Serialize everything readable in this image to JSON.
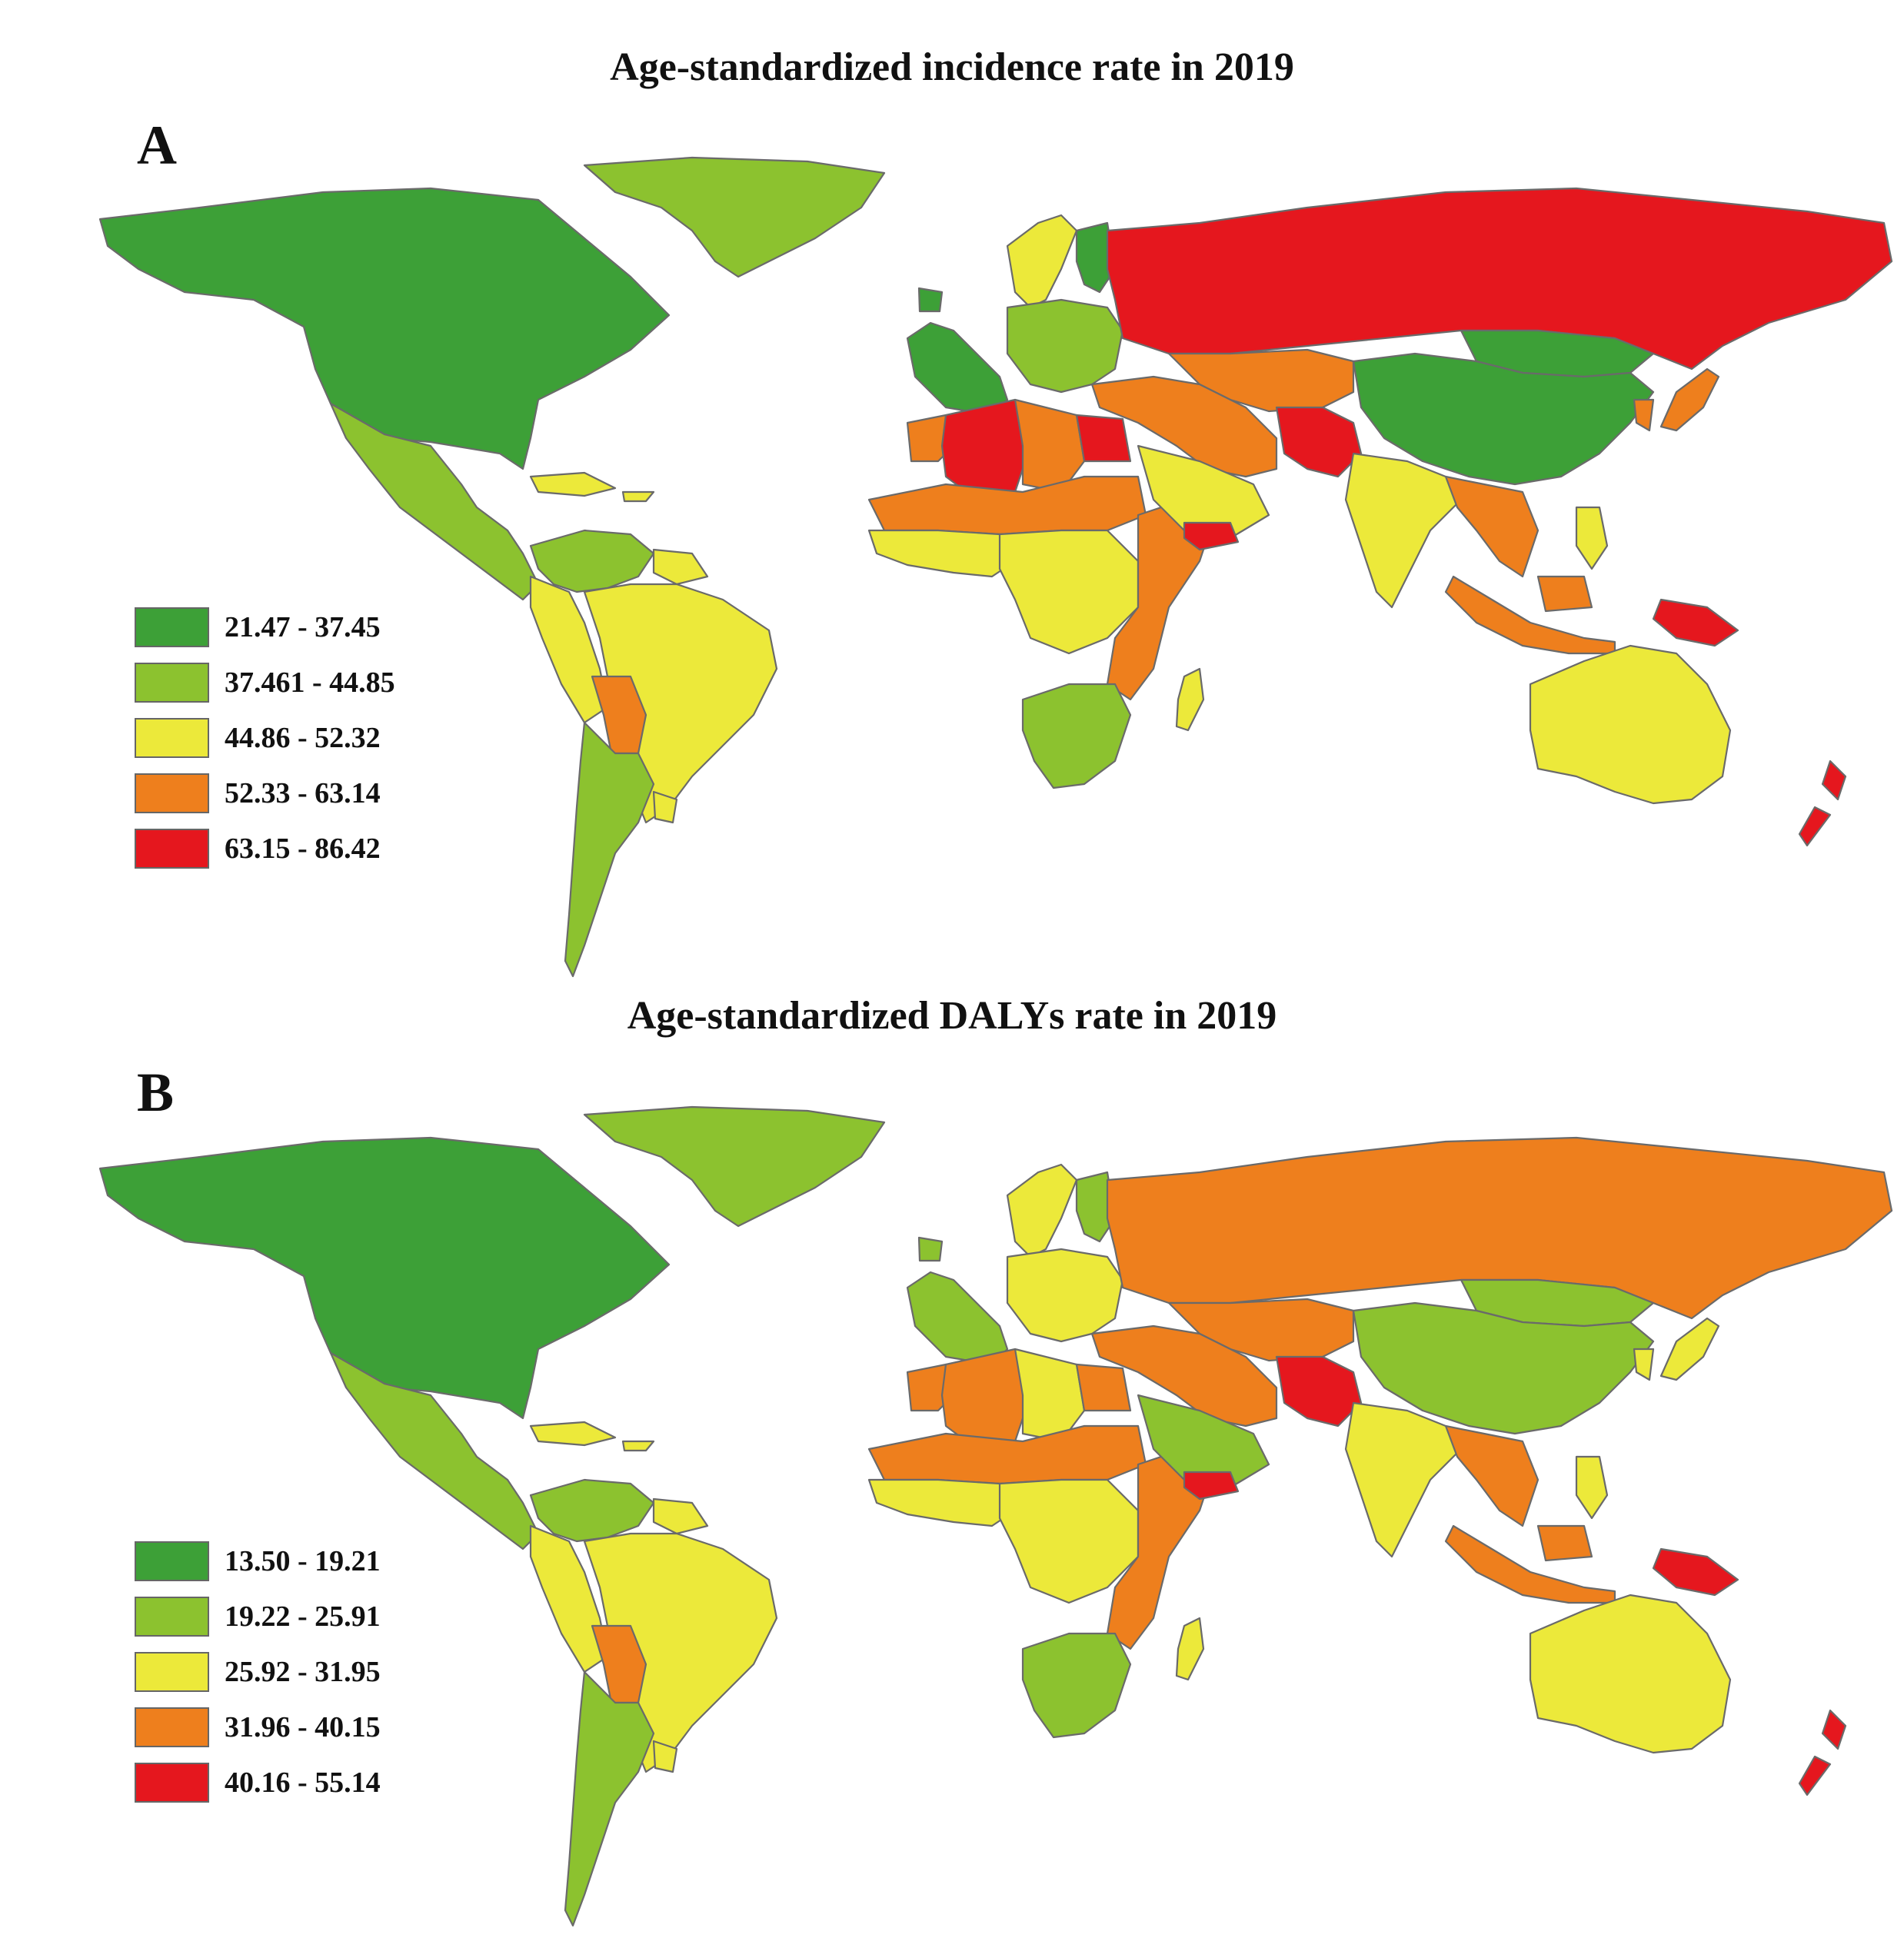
{
  "panels": [
    {
      "letter": "A",
      "title": "Age-standardized incidence rate in 2019",
      "legend": [
        {
          "label": "21.47 - 37.45",
          "color": "#3da037"
        },
        {
          "label": "37.461 - 44.85",
          "color": "#8cc22f"
        },
        {
          "label": "44.86 - 52.32",
          "color": "#ece93a"
        },
        {
          "label": "52.33 - 63.14",
          "color": "#ee7f1d"
        },
        {
          "label": "63.15 - 86.42",
          "color": "#e5171e"
        }
      ],
      "regions": {
        "north_america": 0,
        "greenland": 1,
        "central_america": 1,
        "caribbean": 2,
        "venezuela_colombia": 1,
        "guianas": 2,
        "peru_ecuador": 2,
        "brazil": 2,
        "bolivia": 3,
        "southern_cone": 1,
        "uruguay": 2,
        "western_europe": 0,
        "scandinavia": 2,
        "finland": 0,
        "eastern_europe": 1,
        "russia": 4,
        "central_asia": 3,
        "turkey_iran": 3,
        "afghanistan": 4,
        "china": 0,
        "mongolia": 0,
        "japan": 3,
        "korea": 3,
        "north_africa_west": 4,
        "morocco": 3,
        "libya": 3,
        "egypt": 4,
        "sahel": 3,
        "west_africa": 2,
        "central_africa": 2,
        "east_africa": 3,
        "southern_africa": 1,
        "madagascar": 2,
        "arabia": 2,
        "yemen": 4,
        "india": 2,
        "southeast_asia": 3,
        "indonesia": 3,
        "philippines": 2,
        "papua": 4,
        "australia": 2,
        "new_zealand": 4
      }
    },
    {
      "letter": "B",
      "title": "Age-standardized DALYs rate in 2019",
      "legend": [
        {
          "label": "13.50 - 19.21",
          "color": "#3da037"
        },
        {
          "label": "19.22 - 25.91",
          "color": "#8cc22f"
        },
        {
          "label": "25.92 - 31.95",
          "color": "#ece93a"
        },
        {
          "label": "31.96 - 40.15",
          "color": "#ee7f1d"
        },
        {
          "label": "40.16 - 55.14",
          "color": "#e5171e"
        }
      ],
      "regions": {
        "north_america": 0,
        "greenland": 1,
        "central_america": 1,
        "caribbean": 2,
        "venezuela_colombia": 1,
        "guianas": 2,
        "peru_ecuador": 2,
        "brazil": 2,
        "bolivia": 3,
        "southern_cone": 1,
        "uruguay": 2,
        "western_europe": 1,
        "scandinavia": 2,
        "finland": 1,
        "eastern_europe": 2,
        "russia": 3,
        "central_asia": 3,
        "turkey_iran": 3,
        "afghanistan": 4,
        "china": 1,
        "mongolia": 1,
        "japan": 2,
        "korea": 2,
        "north_africa_west": 3,
        "morocco": 3,
        "libya": 2,
        "egypt": 3,
        "sahel": 3,
        "west_africa": 2,
        "central_africa": 2,
        "east_africa": 3,
        "southern_africa": 1,
        "madagascar": 2,
        "arabia": 1,
        "yemen": 4,
        "india": 2,
        "southeast_asia": 3,
        "indonesia": 3,
        "philippines": 2,
        "papua": 4,
        "australia": 2,
        "new_zealand": 4
      }
    }
  ]
}
